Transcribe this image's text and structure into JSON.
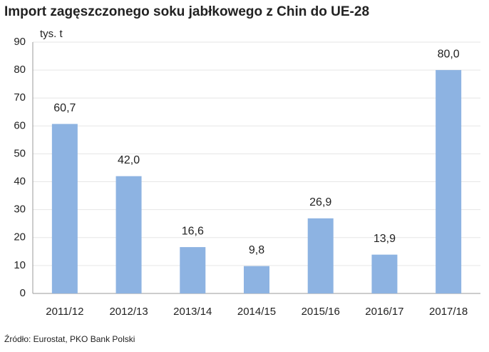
{
  "chart_data": {
    "type": "bar",
    "title": "Import zagęszczonego soku jabłkowego z Chin do UE-28",
    "y_label": "tys. t",
    "source": "Źródło: Eurostat, PKO Bank Polski",
    "categories": [
      "2011/12",
      "2012/13",
      "2013/14",
      "2014/15",
      "2015/16",
      "2016/17",
      "2017/18"
    ],
    "values": [
      60.7,
      42.0,
      16.6,
      9.8,
      26.9,
      13.9,
      80.0
    ],
    "value_labels": [
      "60,7",
      "42,0",
      "16,6",
      "9,8",
      "26,9",
      "13,9",
      "80,0"
    ],
    "color": "#8db3e2",
    "ylim": [
      0,
      90
    ],
    "yticks": [
      0,
      10,
      20,
      30,
      40,
      50,
      60,
      70,
      80,
      90
    ],
    "grid": true
  }
}
